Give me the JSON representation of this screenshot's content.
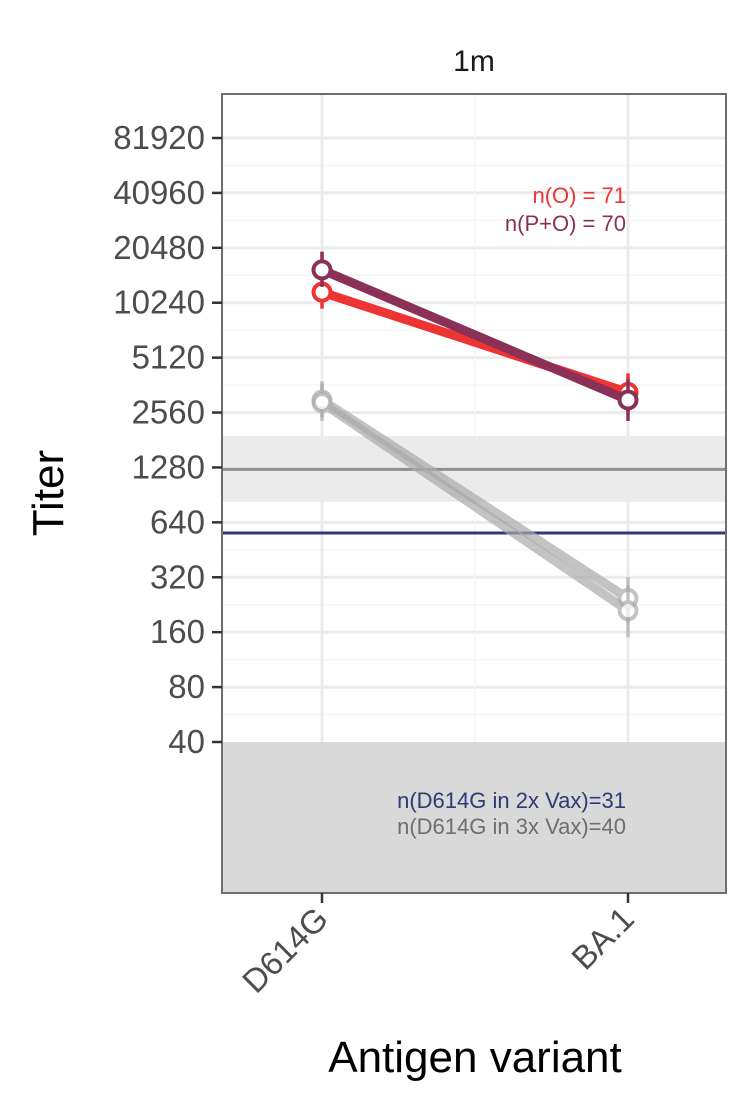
{
  "chart_data": {
    "type": "line",
    "facet": "1m",
    "xlabel": "Antigen variant",
    "ylabel": "Titer",
    "y_scale": "log2",
    "categories": [
      "D614G",
      "BA.1"
    ],
    "y_ticks": [
      40,
      80,
      160,
      320,
      640,
      1280,
      2560,
      5120,
      10240,
      20480,
      40960,
      81920
    ],
    "y_tick_labels": [
      "40",
      "80",
      "160",
      "320",
      "640",
      "1280",
      "2560",
      "5120",
      "10240",
      "20480",
      "40960",
      "81920"
    ],
    "grid": true,
    "series": [
      {
        "name": "n(P+O) = 70",
        "color": "#8b3157",
        "values": [
          15500,
          3000
        ],
        "lower": [
          12500,
          2300
        ],
        "upper": [
          19500,
          3900
        ]
      },
      {
        "name": "n(O) = 71",
        "color": "#ee3333",
        "values": [
          11700,
          3300
        ],
        "lower": [
          9500,
          2600
        ],
        "upper": [
          14500,
          4200
        ]
      },
      {
        "name": "",
        "color": "#aaaaaa",
        "values": [
          2900,
          210
        ],
        "lower": [
          2300,
          150
        ],
        "upper": [
          3700,
          290
        ]
      },
      {
        "name": "",
        "color": "#aaaaaa",
        "values": [
          3000,
          245
        ],
        "lower": [
          2400,
          180
        ],
        "upper": [
          3800,
          320
        ]
      }
    ],
    "reference_lines": [
      {
        "value": 1250,
        "color": "#8f8f8f",
        "band_low": 830,
        "band_high": 1900
      },
      {
        "value": 560,
        "color": "#303878"
      }
    ],
    "below_detection_limit": 40,
    "annotations": {
      "top": [
        {
          "text": "n(O) = 71",
          "color": "#ee3333"
        },
        {
          "text": "n(P+O) = 70",
          "color": "#8b3157"
        }
      ],
      "bottom": [
        {
          "text": "n(D614G in 2x Vax)=31",
          "color": "#303878"
        },
        {
          "text": "n(D614G in 3x Vax)=40",
          "color": "#6e6e6e"
        }
      ]
    }
  }
}
